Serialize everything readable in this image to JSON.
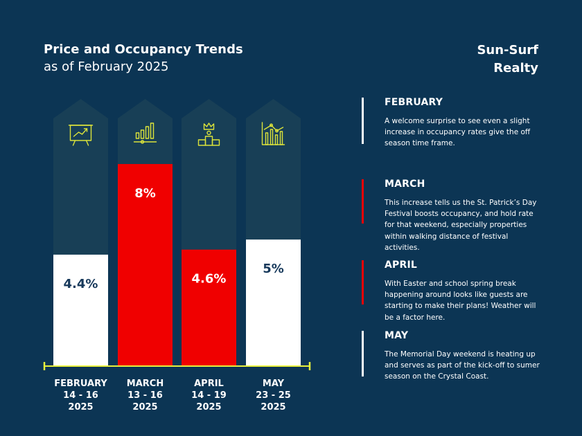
{
  "header": {
    "title": "Price and Occupancy Trends",
    "subtitle": "as of February 2025",
    "brand": "Sun-Surf Realty"
  },
  "colors": {
    "background": "#0c3554",
    "arrow": "#183f56",
    "white_bar": "#ffffff",
    "red_bar": "#f00000",
    "axis": "#e8f03c",
    "icon": "#dce33a"
  },
  "chart_data": {
    "type": "bar",
    "categories": [
      "FEBRUARY\n14 - 16\n2025",
      "MARCH\n13 - 16\n2025",
      "APRIL\n14 - 19\n2025",
      "MAY\n23 - 25\n2025"
    ],
    "values": [
      4.4,
      8,
      4.6,
      5
    ],
    "data_labels": [
      "4.4%",
      "8%",
      "4.6%",
      "5%"
    ],
    "bar_colors": [
      "#ffffff",
      "#f00000",
      "#f00000",
      "#ffffff"
    ],
    "label_colors": [
      "#17395b",
      "#ffffff",
      "#ffffff",
      "#17395b"
    ],
    "icons": [
      "presentation-chart-icon",
      "bar-growth-icon",
      "podium-crown-icon",
      "chart-trend-icon"
    ],
    "title": "Price and Occupancy Trends",
    "subtitle": "as of February 2025",
    "xlabel": "",
    "ylabel": ""
  },
  "notes": [
    {
      "month": "FEBRUARY",
      "text": "A welcome surprise to see even a slight increase in occupancy rates give the off season time frame.",
      "accent": "#ffffff"
    },
    {
      "month": "MARCH",
      "text": "This increase tells us the St. Patrick’s Day Festival boosts occupancy, and hold rate for that weekend, especially properties within walking distance of festival activities.",
      "accent": "#f00000"
    },
    {
      "month": "APRIL",
      "text": "With Easter and school spring break happening around looks like guests are starting to make their plans! Weather will be a factor here.",
      "accent": "#f00000"
    },
    {
      "month": "MAY",
      "text": "The Memorial Day weekend is heating up and serves as part of the kick-off to sumer season on the Crystal Coast.",
      "accent": "#ffffff"
    }
  ]
}
